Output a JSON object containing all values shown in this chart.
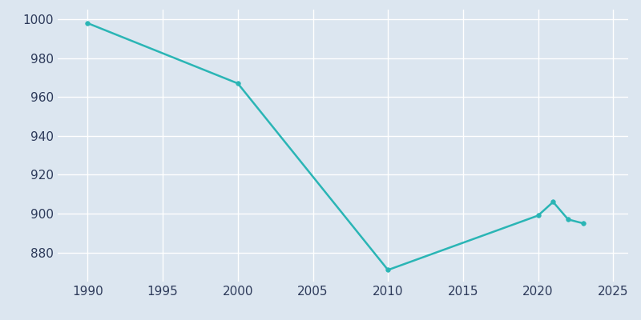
{
  "years": [
    1990,
    2000,
    2010,
    2020,
    2021,
    2022,
    2023
  ],
  "population": [
    998,
    967,
    871,
    899,
    906,
    897,
    895
  ],
  "line_color": "#2ab5b5",
  "marker_color": "#2ab5b5",
  "background_color": "#dce6f0",
  "plot_bg_color": "#dce6f0",
  "grid_color": "#ffffff",
  "tick_color": "#2d3a5a",
  "xlim": [
    1988,
    2026
  ],
  "ylim": [
    865,
    1005
  ],
  "xticks": [
    1990,
    1995,
    2000,
    2005,
    2010,
    2015,
    2020,
    2025
  ],
  "yticks": [
    880,
    900,
    920,
    940,
    960,
    980,
    1000
  ],
  "line_width": 1.8,
  "marker_size": 4
}
